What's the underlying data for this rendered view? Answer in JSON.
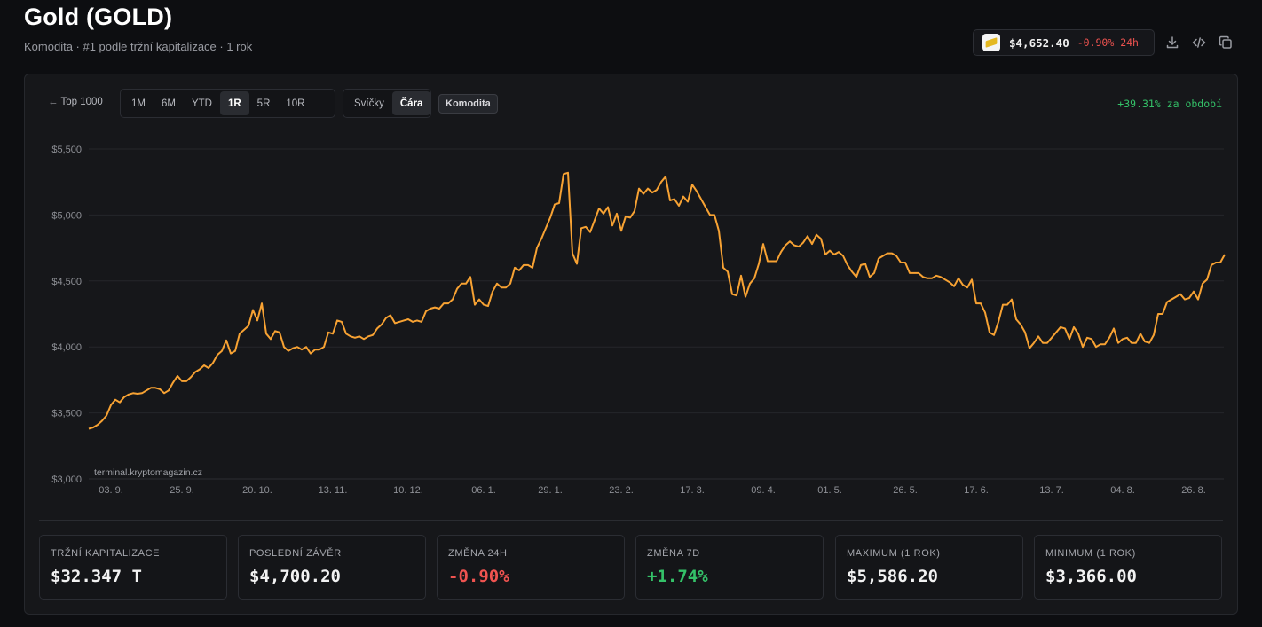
{
  "header": {
    "title": "Gold (GOLD)",
    "subtitle": "Komodita · #1 podle tržní kapitalizace · 1 rok"
  },
  "price_pill": {
    "icon": "gold-bar-icon",
    "price": "$4,652.40",
    "change": "-0.90% 24h"
  },
  "toolbar": {
    "back_label": "← Top 1000",
    "ranges": [
      "1M",
      "6M",
      "YTD",
      "1R",
      "5R",
      "10R"
    ],
    "active_range": "1R",
    "chart_types": [
      "Svíčky",
      "Čára"
    ],
    "active_chart_type": "Čára",
    "category_chip": "Komodita",
    "period_change": "+39.31% za období"
  },
  "watermark": "terminal.kryptomagazin.cz",
  "colors": {
    "line": "#f7a233",
    "positive": "#34c168",
    "negative": "#ef5350",
    "background": "#0d0e11",
    "panel": "#16171a"
  },
  "chart_data": {
    "type": "line",
    "title": "",
    "xlabel": "",
    "ylabel": "",
    "ylim": [
      3000,
      5500
    ],
    "y_ticks": [
      3000,
      3500,
      4000,
      4500,
      5000,
      5500
    ],
    "y_tick_labels": [
      "$3,000",
      "$3,500",
      "$4,000",
      "$4,500",
      "$5,000",
      "$5,500"
    ],
    "x_tick_labels": [
      "03. 9.",
      "25. 9.",
      "20. 10.",
      "13. 11.",
      "10. 12.",
      "06. 1.",
      "29. 1.",
      "23. 2.",
      "17. 3.",
      "09. 4.",
      "01. 5.",
      "26. 5.",
      "17. 6.",
      "13. 7.",
      "04. 8.",
      "26. 8."
    ],
    "x_tick_index": [
      5,
      21,
      38,
      55,
      72,
      89,
      104,
      120,
      136,
      152,
      167,
      184,
      200,
      217,
      233,
      249
    ],
    "grid": true,
    "legend": "none",
    "series": [
      {
        "values": [
          3380,
          3390,
          3410,
          3440,
          3480,
          3560,
          3600,
          3580,
          3620,
          3640,
          3650,
          3645,
          3650,
          3670,
          3690,
          3690,
          3680,
          3650,
          3670,
          3730,
          3780,
          3740,
          3740,
          3770,
          3810,
          3830,
          3860,
          3840,
          3880,
          3940,
          3970,
          4050,
          3950,
          3970,
          4100,
          4130,
          4160,
          4280,
          4200,
          4330,
          4100,
          4060,
          4120,
          4110,
          4000,
          3970,
          3990,
          4000,
          3980,
          4000,
          3950,
          3980,
          3980,
          4000,
          4110,
          4100,
          4200,
          4190,
          4100,
          4080,
          4070,
          4080,
          4060,
          4080,
          4090,
          4140,
          4170,
          4220,
          4240,
          4180,
          4190,
          4200,
          4210,
          4190,
          4200,
          4190,
          4270,
          4290,
          4300,
          4290,
          4330,
          4330,
          4360,
          4440,
          4480,
          4480,
          4530,
          4320,
          4360,
          4320,
          4310,
          4420,
          4480,
          4450,
          4450,
          4480,
          4600,
          4580,
          4620,
          4620,
          4600,
          4750,
          4820,
          4900,
          4980,
          5080,
          5090,
          5310,
          5320,
          4710,
          4630,
          4900,
          4910,
          4870,
          4960,
          5050,
          5010,
          5060,
          4920,
          5010,
          4880,
          4990,
          4980,
          5030,
          5200,
          5160,
          5200,
          5170,
          5190,
          5250,
          5290,
          5110,
          5120,
          5070,
          5140,
          5100,
          5230,
          5180,
          5120,
          5060,
          5000,
          5000,
          4880,
          4600,
          4570,
          4400,
          4390,
          4540,
          4380,
          4480,
          4520,
          4630,
          4780,
          4650,
          4650,
          4650,
          4720,
          4770,
          4800,
          4770,
          4760,
          4790,
          4840,
          4780,
          4850,
          4820,
          4700,
          4730,
          4700,
          4720,
          4690,
          4620,
          4570,
          4530,
          4620,
          4630,
          4530,
          4560,
          4670,
          4690,
          4710,
          4710,
          4690,
          4640,
          4640,
          4560,
          4560,
          4560,
          4530,
          4520,
          4520,
          4540,
          4530,
          4510,
          4490,
          4460,
          4520,
          4470,
          4450,
          4510,
          4330,
          4330,
          4260,
          4110,
          4090,
          4190,
          4320,
          4320,
          4360,
          4210,
          4170,
          4110,
          3990,
          4030,
          4080,
          4030,
          4030,
          4070,
          4110,
          4150,
          4140,
          4060,
          4150,
          4100,
          4000,
          4070,
          4060,
          4000,
          4020,
          4020,
          4070,
          4140,
          4030,
          4060,
          4070,
          4030,
          4030,
          4100,
          4040,
          4030,
          4090,
          4250,
          4250,
          4340,
          4360,
          4380,
          4400,
          4360,
          4370,
          4420,
          4360,
          4480,
          4510,
          4620,
          4640,
          4640,
          4700
        ]
      }
    ]
  },
  "stats": [
    {
      "label": "Tržní kapitalizace",
      "value": "$32.347 T",
      "tone": ""
    },
    {
      "label": "Poslední závěr",
      "value": "$4,700.20",
      "tone": ""
    },
    {
      "label": "Změna 24h",
      "value": "-0.90%",
      "tone": "neg"
    },
    {
      "label": "Změna 7D",
      "value": "+1.74%",
      "tone": "pos"
    },
    {
      "label": "Maximum (1 rok)",
      "value": "$5,586.20",
      "tone": ""
    },
    {
      "label": "Minimum (1 rok)",
      "value": "$3,366.00",
      "tone": ""
    }
  ]
}
